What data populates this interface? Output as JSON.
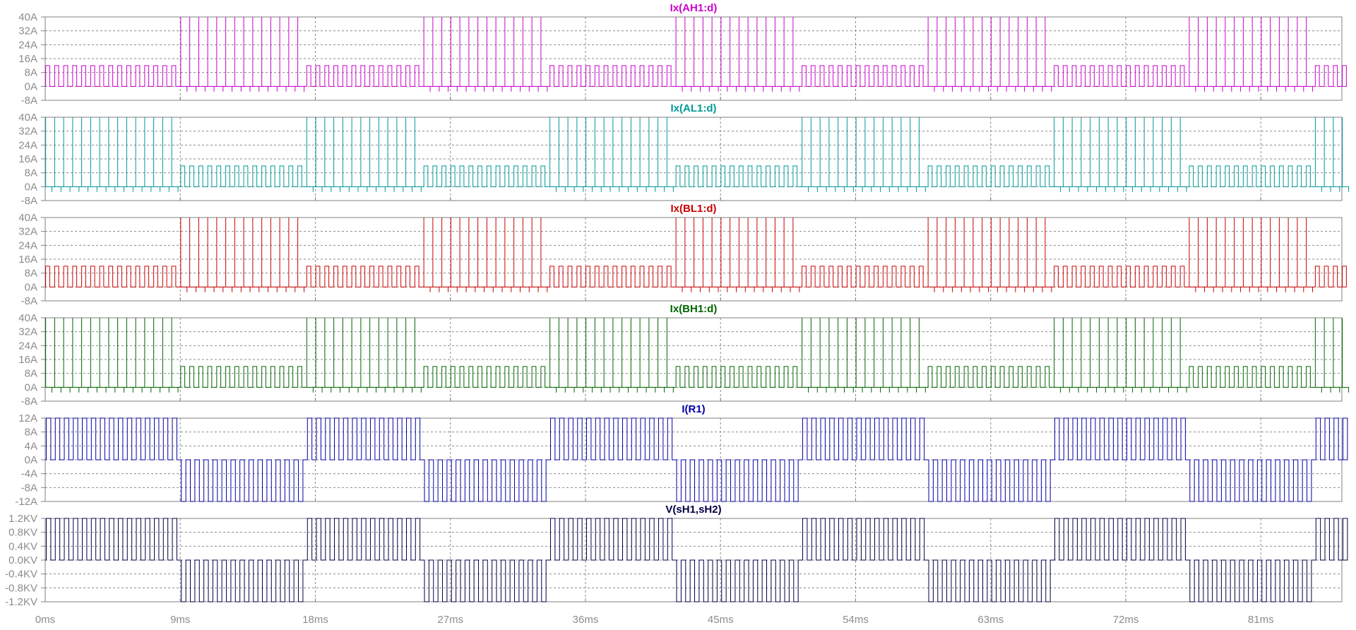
{
  "chart_data": {
    "type": "line",
    "x": {
      "tick_labels": [
        "0ms",
        "9ms",
        "18ms",
        "27ms",
        "36ms",
        "45ms",
        "54ms",
        "63ms",
        "72ms",
        "81ms"
      ],
      "tick_values": [
        0,
        9,
        18,
        27,
        36,
        45,
        54,
        63,
        72,
        81
      ],
      "range": [
        0,
        86.4
      ]
    },
    "grid": true,
    "waveform": {
      "fundamental_period_ms": 16.8,
      "half_period_ms": 8.4,
      "switching_period_ms": 0.6
    },
    "panels": [
      {
        "title": "Ix(AH1:d)",
        "color": "#cc00cc",
        "ylim": [
          -8,
          40
        ],
        "yticks": [
          40,
          32,
          24,
          16,
          8,
          0,
          -8
        ],
        "ytick_labels": [
          "40A",
          "32A",
          "24A",
          "16A",
          "8A",
          "0A",
          "-8A"
        ],
        "baseline": 0,
        "plateau": 12,
        "spike": 40,
        "neg_spike": -3,
        "plateau_phase": "positive"
      },
      {
        "title": "Ix(AL1:d)",
        "color": "#009999",
        "ylim": [
          -8,
          40
        ],
        "yticks": [
          40,
          32,
          24,
          16,
          8,
          0,
          -8
        ],
        "ytick_labels": [
          "40A",
          "32A",
          "24A",
          "16A",
          "8A",
          "0A",
          "-8A"
        ],
        "baseline": 0,
        "plateau": 12,
        "spike": 40,
        "neg_spike": -3,
        "plateau_phase": "negative"
      },
      {
        "title": "Ix(BL1:d)",
        "color": "#cc0000",
        "ylim": [
          -8,
          40
        ],
        "yticks": [
          40,
          32,
          24,
          16,
          8,
          0,
          -8
        ],
        "ytick_labels": [
          "40A",
          "32A",
          "24A",
          "16A",
          "8A",
          "0A",
          "-8A"
        ],
        "baseline": 0,
        "plateau": 12,
        "spike": 40,
        "neg_spike": -3,
        "plateau_phase": "positive"
      },
      {
        "title": "Ix(BH1:d)",
        "color": "#006600",
        "ylim": [
          -8,
          40
        ],
        "yticks": [
          40,
          32,
          24,
          16,
          8,
          0,
          -8
        ],
        "ytick_labels": [
          "40A",
          "32A",
          "24A",
          "16A",
          "8A",
          "0A",
          "-8A"
        ],
        "baseline": 0,
        "plateau": 12,
        "spike": 40,
        "neg_spike": -3,
        "plateau_phase": "negative"
      },
      {
        "title": "I(R1)",
        "color": "#0000aa",
        "ylim": [
          -12,
          12
        ],
        "yticks": [
          12,
          8,
          4,
          0,
          -4,
          -8,
          -12
        ],
        "ytick_labels": [
          "12A",
          "8A",
          "4A",
          "0A",
          "-4A",
          "-8A",
          "-12A"
        ],
        "amplitude": 12,
        "kind": "bipolar"
      },
      {
        "title": "V(sH1,sH2)",
        "color": "#000044",
        "ylim": [
          -1.2,
          1.2
        ],
        "yticks": [
          1.2,
          0.8,
          0.4,
          0.0,
          -0.4,
          -0.8,
          -1.2
        ],
        "ytick_labels": [
          "1.2KV",
          "0.8KV",
          "0.4KV",
          "0.0KV",
          "-0.4KV",
          "-0.8KV",
          "-1.2KV"
        ],
        "amplitude": 1.2,
        "kind": "bipolar"
      }
    ]
  }
}
